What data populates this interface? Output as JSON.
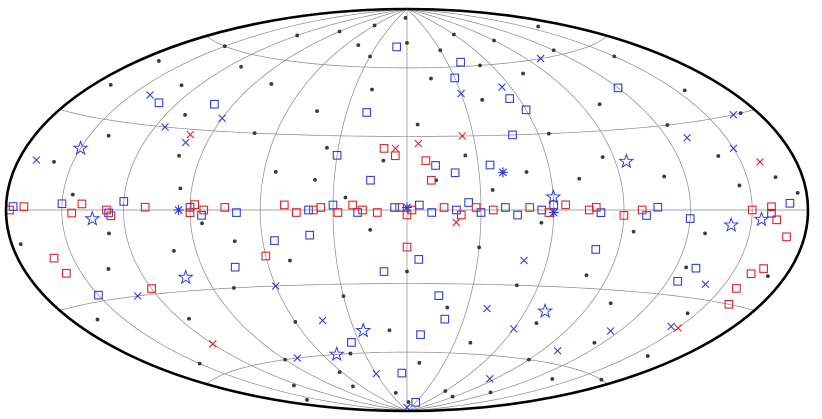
{
  "chart_data": {
    "type": "scatter",
    "projection": "hammer",
    "xlim": [
      180,
      -180
    ],
    "ylim": [
      -90,
      90
    ],
    "xticks": [
      -150,
      -120,
      -90,
      -60,
      -30,
      0,
      30,
      60,
      90,
      120,
      150
    ],
    "yticks": [
      -60,
      -30,
      0,
      30,
      60
    ],
    "grid": true,
    "series": [
      {
        "marker": "dot",
        "color": "#3a3a3a",
        "x": [
          170,
          150,
          120,
          90,
          60,
          30,
          0,
          -30,
          -60,
          -90,
          -120,
          -150,
          -170,
          160,
          140,
          130,
          110,
          100,
          80,
          70,
          55,
          45,
          35,
          20,
          10,
          -5,
          -15,
          -25,
          -40,
          -50,
          -65,
          -75,
          -85,
          -100,
          -110,
          -125,
          -140,
          -155,
          -165,
          175,
          165,
          150,
          135,
          125,
          115,
          100,
          90,
          80,
          70,
          60,
          50,
          40,
          30,
          20,
          10,
          0,
          -10,
          -20,
          -30,
          -40,
          -50,
          -60,
          -70,
          -80,
          -90,
          -100,
          -115,
          -125,
          -135,
          -145,
          -160,
          -170,
          -175,
          145,
          95,
          25,
          -35,
          -95,
          -145,
          85,
          15,
          -55,
          160,
          -160,
          5,
          -5,
          112,
          -52,
          62,
          -118,
          38,
          -12,
          72,
          -72,
          128,
          -128,
          168,
          -168,
          48,
          -88
        ],
        "values": [
          40,
          60,
          70,
          75,
          80,
          65,
          72,
          68,
          75,
          70,
          62,
          55,
          30,
          15,
          25,
          45,
          35,
          20,
          50,
          30,
          15,
          40,
          25,
          50,
          20,
          35,
          55,
          22,
          45,
          15,
          30,
          55,
          20,
          40,
          12,
          30,
          18,
          40,
          10,
          -10,
          -35,
          -55,
          -20,
          -70,
          -40,
          -15,
          -60,
          -30,
          -75,
          -45,
          -20,
          -60,
          -35,
          -80,
          -50,
          -25,
          -65,
          -40,
          -15,
          -55,
          -30,
          -78,
          -45,
          -25,
          -60,
          -35,
          -50,
          -20,
          -65,
          -35,
          -50,
          -20,
          5,
          5,
          8,
          5,
          8,
          -8,
          8,
          -5,
          -8,
          -5,
          -75,
          70,
          85,
          -85,
          55,
          60,
          -68,
          -75,
          12,
          12,
          -12,
          12,
          -8,
          -8,
          50,
          -60,
          70,
          -80
        ]
      },
      {
        "marker": "square",
        "color": "#2b3fe0",
        "x": [
          176,
          150,
          127,
          120,
          90,
          85,
          70,
          40,
          30,
          20,
          5,
          -5,
          -10,
          -20,
          -25,
          -30,
          -40,
          -45,
          -55,
          -60,
          -80,
          -100,
          -105,
          -120,
          -160,
          -170,
          10,
          -40,
          -30,
          -55,
          -60,
          -48,
          20,
          30,
          15,
          -12,
          -20,
          -35,
          55,
          40,
          -5,
          10,
          -15,
          -20,
          35,
          -8,
          5,
          -30,
          75,
          -125,
          -130,
          100,
          -120,
          130,
          150,
          -80
        ],
        "values": [
          1,
          2,
          -1,
          3,
          1,
          -2,
          -1,
          0,
          2,
          -1,
          1,
          2,
          -1,
          0,
          3,
          -1,
          1,
          -2,
          0,
          2,
          -1,
          -2,
          1,
          -3,
          -1,
          2,
          70,
          62,
          55,
          45,
          40,
          30,
          40,
          22,
          12,
          18,
          15,
          18,
          -12,
          -10,
          -20,
          -25,
          -35,
          -45,
          -55,
          -52,
          -70,
          -85,
          -22,
          -25,
          -20,
          40,
          45,
          38,
          -28,
          -15
        ]
      },
      {
        "marker": "square",
        "color": "#e52222",
        "x": [
          178,
          170,
          145,
          140,
          128,
          126,
          110,
          90,
          88,
          84,
          75,
          50,
          45,
          38,
          35,
          28,
          22,
          18,
          12,
          3,
          0,
          -2,
          -15,
          -22,
          -28,
          -35,
          -50,
          -58,
          -65,
          -75,
          -78,
          -90,
          -98,
          -150,
          -160,
          -163,
          5,
          10,
          -8,
          -10,
          160,
          158,
          120,
          -160,
          -158,
          -162,
          -165,
          -170,
          60,
          0
        ],
        "values": [
          0,
          1,
          -1,
          2,
          0,
          -2,
          1,
          -1,
          2,
          0,
          1,
          2,
          -1,
          0,
          1,
          -1,
          2,
          0,
          -1,
          1,
          -2,
          0,
          1,
          -2,
          1,
          0,
          1,
          -1,
          2,
          0,
          1,
          -2,
          0,
          0,
          1,
          -3,
          22,
          25,
          20,
          12,
          -15,
          -20,
          -28,
          -20,
          -25,
          -30,
          -18,
          -8,
          -18,
          -15
        ]
      },
      {
        "marker": "x",
        "color": "#2b3fe0",
        "x": [
          100,
          90,
          -30,
          -55,
          -100,
          -130,
          140,
          -165,
          -50,
          60,
          45,
          -40,
          -60,
          -100,
          -115,
          -140,
          30,
          0,
          130,
          115,
          -150,
          -145,
          80,
          -85,
          170
        ],
        "values": [
          25,
          35,
          48,
          50,
          60,
          25,
          40,
          30,
          -20,
          -30,
          -45,
          -40,
          -48,
          -55,
          -45,
          -25,
          -70,
          -88,
          -30,
          30,
          20,
          -40,
          -60,
          -70,
          15
        ]
      },
      {
        "marker": "x",
        "color": "#e52222",
        "x": [
          5,
          -5,
          100,
          -160,
          -150,
          120,
          -25,
          -20
        ],
        "values": [
          25,
          27,
          28,
          15,
          -40,
          -50,
          30,
          -5
        ]
      },
      {
        "marker": "star",
        "color": "#2b3fe0",
        "x": [
          150,
          100,
          -95,
          -140,
          25,
          50,
          -155,
          135,
          -60,
          -70
        ],
        "values": [
          20,
          -25,
          18,
          -5,
          -50,
          -60,
          -3,
          -3,
          5,
          -40
        ]
      },
      {
        "marker": "asterisk",
        "color": "#2b3fe0",
        "x": [
          95,
          0,
          -60,
          -40
        ],
        "values": [
          0,
          1,
          -1,
          15
        ]
      }
    ]
  }
}
